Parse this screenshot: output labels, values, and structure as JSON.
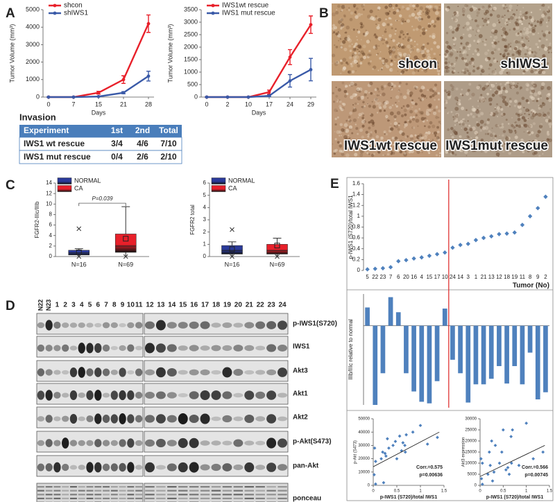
{
  "panel_labels": [
    "A",
    "B",
    "C",
    "D",
    "E"
  ],
  "chart_data": [
    {
      "type": "line",
      "categories": [
        "0",
        "7",
        "15",
        "21",
        "28"
      ],
      "xlabel": "Days",
      "ylabel": "Tumor Volume (mm³)",
      "ylim": [
        0,
        5000
      ],
      "yticks": [
        0,
        1000,
        2000,
        3000,
        4000,
        5000
      ],
      "legend": "upper-left",
      "series": [
        {
          "name": "shcon",
          "color": "#e8202a",
          "values": [
            0,
            0,
            250,
            1000,
            4200
          ],
          "errors": [
            0,
            0,
            80,
            220,
            500
          ]
        },
        {
          "name": "shIWS1",
          "color": "#3a5aa8",
          "values": [
            0,
            0,
            30,
            250,
            1200
          ],
          "errors": [
            0,
            0,
            20,
            60,
            280
          ]
        }
      ]
    },
    {
      "type": "line",
      "categories": [
        "0",
        "2",
        "10",
        "17",
        "24",
        "29"
      ],
      "xlabel": "Days",
      "ylabel": "Tumor Volume (mm³)",
      "ylim": [
        0,
        3500
      ],
      "yticks": [
        0,
        500,
        1000,
        1500,
        2000,
        2500,
        3000,
        3500
      ],
      "legend": "upper-left",
      "series": [
        {
          "name": "IWS1wt rescue",
          "color": "#e8202a",
          "values": [
            0,
            0,
            0,
            200,
            1600,
            2900
          ],
          "errors": [
            0,
            0,
            0,
            80,
            300,
            350
          ]
        },
        {
          "name": "IWS1 mut rescue",
          "color": "#3a5aa8",
          "values": [
            0,
            0,
            0,
            50,
            650,
            1100
          ],
          "errors": [
            0,
            0,
            0,
            30,
            250,
            450
          ]
        }
      ]
    },
    {
      "type": "box",
      "categories": [
        "N=16",
        "N=69"
      ],
      "ylabel": "FGFR2-IIIc/IIIb",
      "ylim": [
        0,
        14
      ],
      "yticks": [
        0,
        2,
        4,
        6,
        8,
        10,
        12,
        14
      ],
      "annotation": "P=0.039",
      "legend": "upper-left",
      "series": [
        {
          "name": "NORMAL",
          "color": "#2a3a9a",
          "whisker_low": 0,
          "q1": 0.3,
          "median": 0.7,
          "q3": 1.2,
          "whisker_high": 1.5,
          "mean": 0.8,
          "outliers": [
            5.3,
            0
          ]
        },
        {
          "name": "CA",
          "color": "#e8202a",
          "whisker_low": 0,
          "q1": 0.8,
          "median": 2,
          "q3": 4.3,
          "whisker_high": 9.5,
          "mean": 3.4,
          "outliers": [
            0
          ]
        }
      ]
    },
    {
      "type": "box",
      "categories": [
        "N=16",
        "N=69"
      ],
      "ylabel": "FGFR2 total",
      "ylim": [
        0,
        6
      ],
      "yticks": [
        0,
        1,
        2,
        3,
        4,
        5,
        6
      ],
      "legend": "upper-left",
      "series": [
        {
          "name": "NORMAL",
          "color": "#2a3a9a",
          "whisker_low": 0,
          "q1": 0.2,
          "median": 0.5,
          "q3": 0.9,
          "whisker_high": 1.2,
          "mean": 0.6,
          "outliers": [
            2.2,
            0
          ]
        },
        {
          "name": "CA",
          "color": "#e8202a",
          "whisker_low": 0,
          "q1": 0.2,
          "median": 0.5,
          "q3": 1.0,
          "whisker_high": 1.5,
          "mean": 0.9,
          "outliers": [
            0
          ]
        }
      ]
    },
    {
      "type": "dot",
      "categories": [
        "5",
        "22",
        "23",
        "7",
        "6",
        "20",
        "16",
        "4",
        "15",
        "17",
        "10",
        "24",
        "14",
        "3",
        "1",
        "21",
        "13",
        "12",
        "18",
        "19",
        "11",
        "8",
        "9",
        "2"
      ],
      "ylabel": "p-IWS1 (S720)/total IWS1",
      "xlabel": "Tumor (No)",
      "ylim": [
        0,
        1.6
      ],
      "yticks": [
        0,
        0.2,
        0.4,
        0.6,
        0.8,
        1,
        1.2,
        1.4,
        1.6
      ],
      "color": "#4f81bd",
      "values": [
        0.02,
        0.03,
        0.04,
        0.06,
        0.17,
        0.19,
        0.22,
        0.24,
        0.27,
        0.3,
        0.33,
        0.42,
        0.47,
        0.49,
        0.56,
        0.6,
        0.63,
        0.67,
        0.68,
        0.7,
        0.84,
        1.0,
        1.15,
        1.36
      ]
    },
    {
      "type": "bar",
      "ylabel": "IIIb/IIIc relative to normal",
      "ylim": [
        -5,
        2
      ],
      "color": "#4f81bd",
      "values": [
        1.15,
        -5.0,
        -3.0,
        1.8,
        0.85,
        -3.0,
        -4.15,
        -4.8,
        -4.9,
        -3.5,
        1.08,
        -2.15,
        -3.0,
        -4.85,
        -3.7,
        -3.7,
        -3.35,
        -2.55,
        -3.65,
        -2.55,
        -3.7,
        -1.7,
        -4.65,
        -4.2
      ]
    },
    {
      "type": "scatter",
      "xlabel": "p-IWS1 (S720)/total IWS1",
      "ylabel": "p-Akt (S473)",
      "color": "#4f81bd",
      "xlim": [
        0,
        1.5
      ],
      "xticks": [
        0,
        0.5,
        1,
        1.5
      ],
      "ylim": [
        0,
        50000
      ],
      "yticks": [
        0,
        10000,
        20000,
        30000,
        40000,
        50000
      ],
      "x": [
        0.02,
        0.03,
        0.05,
        0.05,
        0.17,
        0.2,
        0.22,
        0.25,
        0.27,
        0.3,
        0.33,
        0.42,
        0.47,
        0.5,
        0.56,
        0.6,
        0.63,
        0.67,
        0.68,
        0.7,
        0.84,
        1.0,
        1.15,
        1.36
      ],
      "y": [
        8000,
        28000,
        1000,
        18000,
        20000,
        25000,
        2000,
        24000,
        22000,
        35000,
        28000,
        30000,
        33000,
        20000,
        37000,
        26000,
        32000,
        30000,
        25000,
        38000,
        40000,
        45000,
        31000,
        36000
      ],
      "fit": {
        "x": [
          0,
          1.4
        ],
        "y": [
          14000,
          40000
        ]
      },
      "annotations": [
        "Corr.=0.575",
        "p=0.00636"
      ]
    },
    {
      "type": "scatter",
      "xlabel": "p-IWS1 (S720)/total IWS1",
      "ylabel": "Akt3 expression",
      "color": "#4f81bd",
      "xlim": [
        0,
        1.5
      ],
      "xticks": [
        0,
        0.5,
        1,
        1.5
      ],
      "ylim": [
        0,
        30000
      ],
      "yticks": [
        0,
        5000,
        10000,
        15000,
        20000,
        25000,
        30000
      ],
      "x": [
        0.02,
        0.03,
        0.05,
        0.05,
        0.17,
        0.2,
        0.22,
        0.25,
        0.27,
        0.3,
        0.33,
        0.42,
        0.47,
        0.5,
        0.56,
        0.6,
        0.63,
        0.67,
        0.68,
        0.7,
        0.84,
        1.0,
        1.15,
        1.36
      ],
      "y": [
        12000,
        3000,
        10000,
        500,
        5000,
        15000,
        9000,
        20000,
        2000,
        6000,
        18000,
        10000,
        15000,
        25000,
        7000,
        8000,
        5000,
        22000,
        10000,
        25000,
        9000,
        28000,
        12000,
        15000
      ],
      "fit": {
        "x": [
          0,
          1.4
        ],
        "y": [
          4000,
          18000
        ]
      },
      "annotations": [
        "Corr.=0.566",
        "p=0.00745"
      ]
    }
  ],
  "table": {
    "title": "Invasion",
    "header": [
      "Experiment",
      "1st",
      "2nd",
      "Total"
    ],
    "rows": [
      [
        "IWS1 wt rescue",
        "3/4",
        "4/6",
        "7/10"
      ],
      [
        "IWS1 mut rescue",
        "0/4",
        "2/6",
        "2/10"
      ]
    ]
  },
  "images": {
    "labels": [
      "shcon",
      "shIWS1",
      "IWS1wt rescue",
      "IWS1mut rescue"
    ]
  },
  "blot": {
    "lanes_left": [
      "N22",
      "N23",
      "1",
      "2",
      "3",
      "4",
      "5",
      "6",
      "7",
      "8",
      "9",
      "10",
      "11"
    ],
    "lanes_right": [
      "12",
      "13",
      "14",
      "15",
      "16",
      "17",
      "18",
      "19",
      "20",
      "21",
      "22",
      "23",
      "24"
    ],
    "rows": [
      "p-IWS1(S720)",
      "IWS1",
      "Akt3",
      "Akt1",
      "Akt2",
      "p-Akt(S473)",
      "pan-Akt",
      "ponceau"
    ]
  }
}
